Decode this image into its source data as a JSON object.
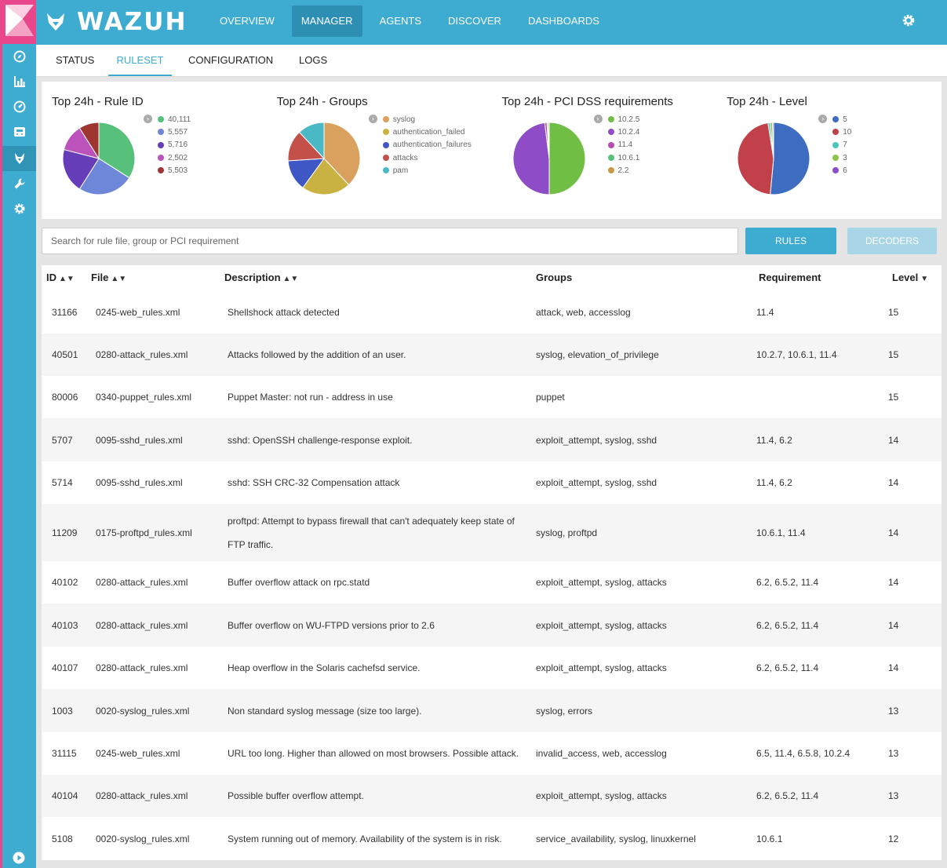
{
  "app": {
    "brand": "WAZUH"
  },
  "colors": {
    "primary": "#3eacd1",
    "kibana": "#e8478b"
  },
  "sidebar": {
    "items": [
      {
        "icon": "compass-icon"
      },
      {
        "icon": "bar-chart-icon"
      },
      {
        "icon": "gauge-icon"
      },
      {
        "icon": "tray-icon"
      },
      {
        "icon": "wazuh-wolf-icon"
      },
      {
        "icon": "wrench-icon"
      },
      {
        "icon": "gear-icon"
      },
      {
        "icon": "play-circle-icon"
      }
    ]
  },
  "topnav": {
    "items": [
      "OVERVIEW",
      "MANAGER",
      "AGENTS",
      "DISCOVER",
      "DASHBOARDS"
    ],
    "active": "MANAGER"
  },
  "subnav": {
    "items": [
      "STATUS",
      "RULESET",
      "CONFIGURATION",
      "LOGS"
    ],
    "active": "RULESET"
  },
  "charts": [
    {
      "title": "Top 24h - Rule ID",
      "chart_data": {
        "type": "pie",
        "labels": [
          "40,111",
          "5,557",
          "5,716",
          "2,502",
          "5,503"
        ],
        "values": [
          34,
          25,
          20,
          12,
          9
        ],
        "colors": [
          "#57c17b",
          "#6f87d8",
          "#663db8",
          "#bc52bc",
          "#9e3533"
        ]
      }
    },
    {
      "title": "Top 24h - Groups",
      "chart_data": {
        "type": "pie",
        "labels": [
          "syslog",
          "authentication_failed",
          "authentication_failures",
          "attacks",
          "pam"
        ],
        "values": [
          38,
          22,
          14,
          14,
          12
        ],
        "colors": [
          "#daa05d",
          "#c9b242",
          "#3f57c4",
          "#c4504a",
          "#4bb8c6"
        ]
      }
    },
    {
      "title": "Top 24h - PCI DSS requirements",
      "chart_data": {
        "type": "pie",
        "labels": [
          "10.2.5",
          "10.2.4",
          "11.4",
          "10.6.1",
          "2.2"
        ],
        "values": [
          50,
          48,
          1,
          0.5,
          0.5
        ],
        "colors": [
          "#71be45",
          "#8e4cc7",
          "#b94bb3",
          "#57c17b",
          "#c99a45"
        ]
      }
    },
    {
      "title": "Top 24h - Level",
      "chart_data": {
        "type": "pie",
        "labels": [
          "5",
          "10",
          "7",
          "3",
          "6"
        ],
        "values": [
          51.5,
          46,
          1,
          1,
          0.5
        ],
        "colors": [
          "#3e6cc0",
          "#c1404a",
          "#4bc6b8",
          "#8cc34d",
          "#8a4ccc"
        ]
      }
    }
  ],
  "search": {
    "placeholder": "Search for rule file, group or PCI requirement"
  },
  "buttons": {
    "rules": "RULES",
    "decoders": "DECODERS"
  },
  "table": {
    "headers": {
      "id": "ID",
      "file": "File",
      "description": "Description",
      "groups": "Groups",
      "requirement": "Requirement",
      "level": "Level"
    },
    "rows": [
      {
        "id": "31166",
        "file": "0245-web_rules.xml",
        "description": "Shellshock attack detected",
        "groups": "attack, web, accesslog",
        "requirement": "11.4",
        "level": "15"
      },
      {
        "id": "40501",
        "file": "0280-attack_rules.xml",
        "description": "Attacks followed by the addition of an user.",
        "groups": "syslog, elevation_of_privilege",
        "requirement": "10.2.7, 10.6.1, 11.4",
        "level": "15"
      },
      {
        "id": "80006",
        "file": "0340-puppet_rules.xml",
        "description": "Puppet Master: not run - address in use",
        "groups": "puppet",
        "requirement": "",
        "level": "15"
      },
      {
        "id": "5707",
        "file": "0095-sshd_rules.xml",
        "description": "sshd: OpenSSH challenge-response exploit.",
        "groups": "exploit_attempt, syslog, sshd",
        "requirement": "11.4, 6.2",
        "level": "14"
      },
      {
        "id": "5714",
        "file": "0095-sshd_rules.xml",
        "description": "sshd: SSH CRC-32 Compensation attack",
        "groups": "exploit_attempt, syslog, sshd",
        "requirement": "11.4, 6.2",
        "level": "14"
      },
      {
        "id": "11209",
        "file": "0175-proftpd_rules.xml",
        "description": "proftpd: Attempt to bypass firewall that can't adequately keep state of FTP traffic.",
        "groups": "syslog, proftpd",
        "requirement": "10.6.1, 11.4",
        "level": "14"
      },
      {
        "id": "40102",
        "file": "0280-attack_rules.xml",
        "description": "Buffer overflow attack on rpc.statd",
        "groups": "exploit_attempt, syslog, attacks",
        "requirement": "6.2, 6.5.2, 11.4",
        "level": "14"
      },
      {
        "id": "40103",
        "file": "0280-attack_rules.xml",
        "description": "Buffer overflow on WU-FTPD versions prior to 2.6",
        "groups": "exploit_attempt, syslog, attacks",
        "requirement": "6.2, 6.5.2, 11.4",
        "level": "14"
      },
      {
        "id": "40107",
        "file": "0280-attack_rules.xml",
        "description": "Heap overflow in the Solaris cachefsd service.",
        "groups": "exploit_attempt, syslog, attacks",
        "requirement": "6.2, 6.5.2, 11.4",
        "level": "14"
      },
      {
        "id": "1003",
        "file": "0020-syslog_rules.xml",
        "description": "Non standard syslog message (size too large).",
        "groups": "syslog, errors",
        "requirement": "",
        "level": "13"
      },
      {
        "id": "31115",
        "file": "0245-web_rules.xml",
        "description": "URL too long. Higher than allowed on most browsers. Possible attack.",
        "groups": "invalid_access, web, accesslog",
        "requirement": "6.5, 11.4, 6.5.8, 10.2.4",
        "level": "13"
      },
      {
        "id": "40104",
        "file": "0280-attack_rules.xml",
        "description": "Possible buffer overflow attempt.",
        "groups": "exploit_attempt, syslog, attacks",
        "requirement": "6.2, 6.5.2, 11.4",
        "level": "13"
      },
      {
        "id": "5108",
        "file": "0020-syslog_rules.xml",
        "description": "System running out of memory. Availability of the system is in risk.",
        "groups": "service_availability, syslog, linuxkernel",
        "requirement": "10.6.1",
        "level": "12"
      }
    ]
  }
}
